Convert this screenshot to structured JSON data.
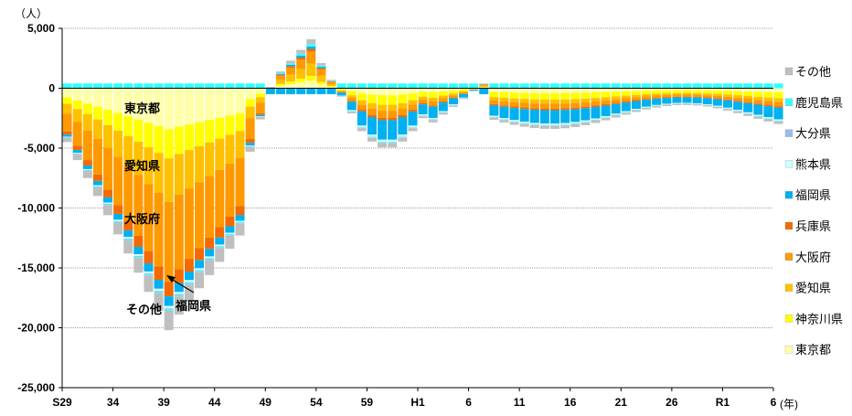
{
  "chart_data": {
    "type": "bar",
    "stacked": true,
    "y_unit_label": "（人）",
    "x_unit_label": "(年)",
    "ylim": [
      -25000,
      5000
    ],
    "yticks": [
      5000,
      0,
      -5000,
      -10000,
      -15000,
      -20000,
      -25000
    ],
    "ytick_labels": [
      "5,000",
      "0",
      "-5,000",
      "-10,000",
      "-15,000",
      "-20,000",
      "-25,000"
    ],
    "x_tick_labels": [
      "S29",
      "34",
      "39",
      "44",
      "49",
      "54",
      "59",
      "H1",
      "6",
      "11",
      "16",
      "21",
      "26",
      "R1",
      "6"
    ],
    "x_tick_index": [
      0,
      5,
      10,
      15,
      20,
      25,
      30,
      35,
      40,
      45,
      50,
      55,
      60,
      65,
      70
    ],
    "years_count": 71,
    "series_order": [
      "東京都",
      "神奈川県",
      "愛知県",
      "大阪府",
      "兵庫県",
      "福岡県",
      "熊本県",
      "大分県",
      "鹿児島県",
      "その他"
    ],
    "colors": {
      "東京都": "#FFFFAA",
      "神奈川県": "#FFFF00",
      "愛知県": "#FFC000",
      "大阪府": "#FF9900",
      "兵庫県": "#F46A00",
      "福岡県": "#00B0F0",
      "熊本県": "#CCFFFF",
      "大分県": "#99BBEE",
      "鹿児島県": "#33FFFF",
      "その他": "#BFBFBF"
    },
    "legend": [
      "その他",
      "鹿児島県",
      "大分県",
      "熊本県",
      "福岡県",
      "兵庫県",
      "大阪府",
      "愛知県",
      "神奈川県",
      "東京都"
    ],
    "annotations": [
      "東京都",
      "愛知県",
      "大阪府",
      "その他",
      "福岡県"
    ]
  }
}
